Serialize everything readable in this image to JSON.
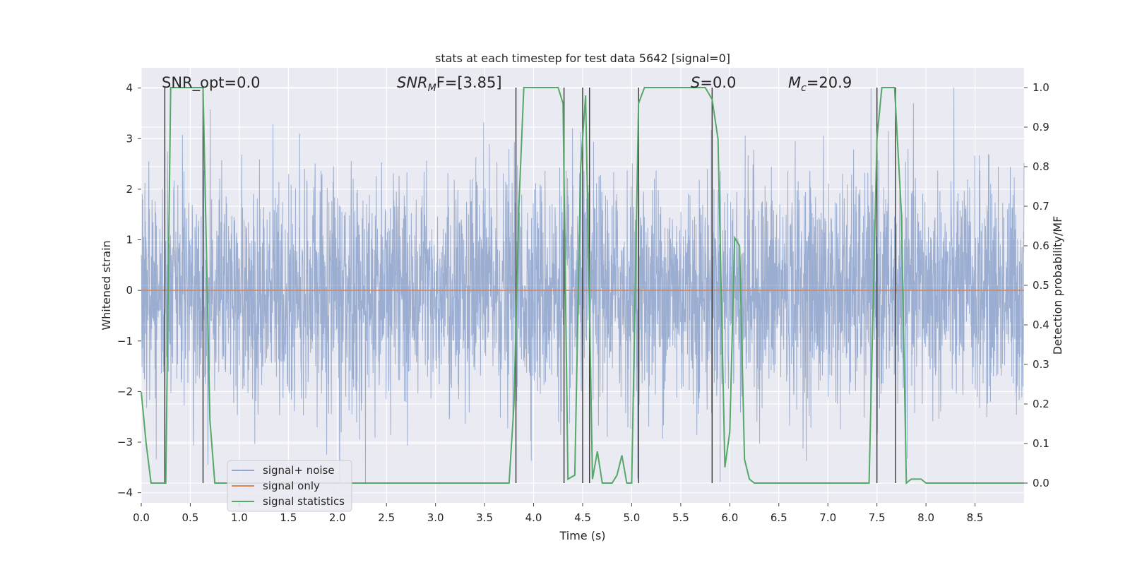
{
  "chart_data": {
    "type": "line",
    "title": "stats at each timestep for test data 5642 [signal=0]",
    "xlabel": "Time (s)",
    "ylabel": "Whitened strain",
    "ylabel_right": "Detection probability/MF",
    "xlim": [
      0.0,
      9.0
    ],
    "ylim": [
      -4.2,
      4.4
    ],
    "ylim_right": [
      -0.05,
      1.05
    ],
    "x_ticks": [
      "0.0",
      "0.5",
      "1.0",
      "1.5",
      "2.0",
      "2.5",
      "3.0",
      "3.5",
      "4.0",
      "4.5",
      "5.0",
      "5.5",
      "6.0",
      "6.5",
      "7.0",
      "7.5",
      "8.0",
      "8.5"
    ],
    "y_ticks": [
      "4",
      "3",
      "2",
      "1",
      "0",
      "−1",
      "−2",
      "−3",
      "−4"
    ],
    "y_ticks_right": [
      "1.0",
      "0.9",
      "0.8",
      "0.7",
      "0.6",
      "0.5",
      "0.4",
      "0.3",
      "0.2",
      "0.1",
      "0.0"
    ],
    "annotations": {
      "snr_opt": "SNR_opt=0.0",
      "snr_mf_main": "SNR",
      "snr_mf_sub": "M",
      "snr_mf_tail": "F=[3.85]",
      "s_main": "S",
      "s_tail": "=0.0",
      "mc_main": "M",
      "mc_sub": "c",
      "mc_tail": "=20.9"
    },
    "legend": [
      "signal+ noise",
      "signal only",
      "signal statistics"
    ],
    "colors": {
      "signal_noise": "#4c72b0",
      "signal_only": "#dd8452",
      "signal_statistics": "#55a868",
      "event_lines": "#404040",
      "background": "#eaeaf2",
      "grid": "#ffffff"
    },
    "series": [
      {
        "name": "signal+ noise",
        "axis": "left",
        "description_level": "gaussian noise, std about 1.1, amplitude range about -4 to 4 (dense, 2048 Hz)"
      },
      {
        "name": "signal only",
        "axis": "left",
        "x": [
          0.0,
          9.0
        ],
        "y": [
          0.0,
          0.0
        ]
      },
      {
        "name": "signal statistics",
        "axis": "right",
        "x": [
          0.0,
          0.05,
          0.1,
          0.2,
          0.25,
          0.3,
          0.35,
          0.4,
          0.5,
          0.6,
          0.63,
          0.7,
          0.75,
          0.8,
          1.0,
          2.0,
          3.0,
          3.5,
          3.75,
          3.8,
          3.85,
          3.9,
          4.0,
          4.25,
          4.3,
          4.35,
          4.42,
          4.48,
          4.53,
          4.58,
          4.6,
          4.65,
          4.7,
          4.8,
          4.85,
          4.9,
          4.95,
          5.0,
          5.07,
          5.13,
          5.2,
          5.5,
          5.75,
          5.82,
          5.88,
          5.95,
          6.0,
          6.05,
          6.1,
          6.15,
          6.2,
          6.25,
          6.4,
          7.0,
          7.42,
          7.5,
          7.55,
          7.68,
          7.75,
          7.8,
          7.85,
          7.95,
          8.0,
          8.5,
          9.0
        ],
        "y": [
          0.23,
          0.1,
          0.0,
          0.0,
          0.0,
          1.0,
          1.0,
          1.0,
          1.0,
          1.0,
          1.0,
          0.16,
          0.0,
          0.0,
          0.0,
          0.0,
          0.0,
          0.0,
          0.0,
          0.2,
          0.7,
          1.0,
          1.0,
          1.0,
          0.96,
          0.01,
          0.02,
          0.8,
          0.98,
          0.3,
          0.01,
          0.08,
          0.0,
          0.0,
          0.02,
          0.07,
          0.0,
          0.0,
          0.96,
          1.0,
          1.0,
          1.0,
          1.0,
          0.97,
          0.87,
          0.04,
          0.13,
          0.62,
          0.6,
          0.06,
          0.01,
          0.0,
          0.0,
          0.0,
          0.0,
          0.87,
          1.0,
          1.0,
          0.68,
          0.0,
          0.01,
          0.01,
          0.0,
          0.0,
          0.0
        ]
      }
    ],
    "event_times": [
      0.24,
      0.63,
      3.82,
      4.31,
      4.5,
      4.57,
      5.07,
      5.82,
      7.5,
      7.69
    ]
  }
}
